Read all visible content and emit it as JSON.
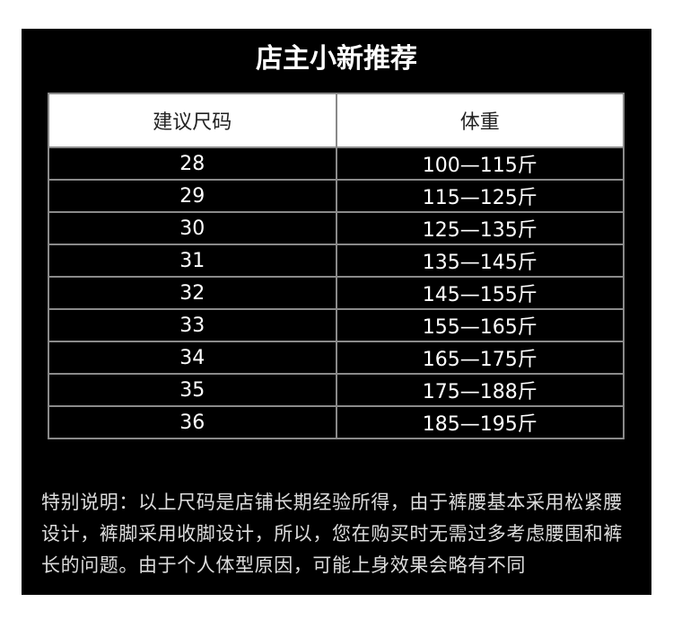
{
  "header": {
    "title": "店主小新推荐"
  },
  "table": {
    "columns": [
      "建议尺码",
      "体重"
    ],
    "rows": [
      [
        "28",
        "100—115斤"
      ],
      [
        "29",
        "115—125斤"
      ],
      [
        "30",
        "125—135斤"
      ],
      [
        "31",
        "135—145斤"
      ],
      [
        "32",
        "145—155斤"
      ],
      [
        "33",
        "155—165斤"
      ],
      [
        "34",
        "165—175斤"
      ],
      [
        "35",
        "175—188斤"
      ],
      [
        "36",
        "185—195斤"
      ]
    ]
  },
  "note": "特别说明：以上尺码是店铺长期经验所得，由于裤腰基本采用松紧腰设计，裤脚采用收脚设计，所以，您在购买时无需过多考虑腰围和裤长的问题。由于个人体型原因，可能上身效果会略有不同"
}
